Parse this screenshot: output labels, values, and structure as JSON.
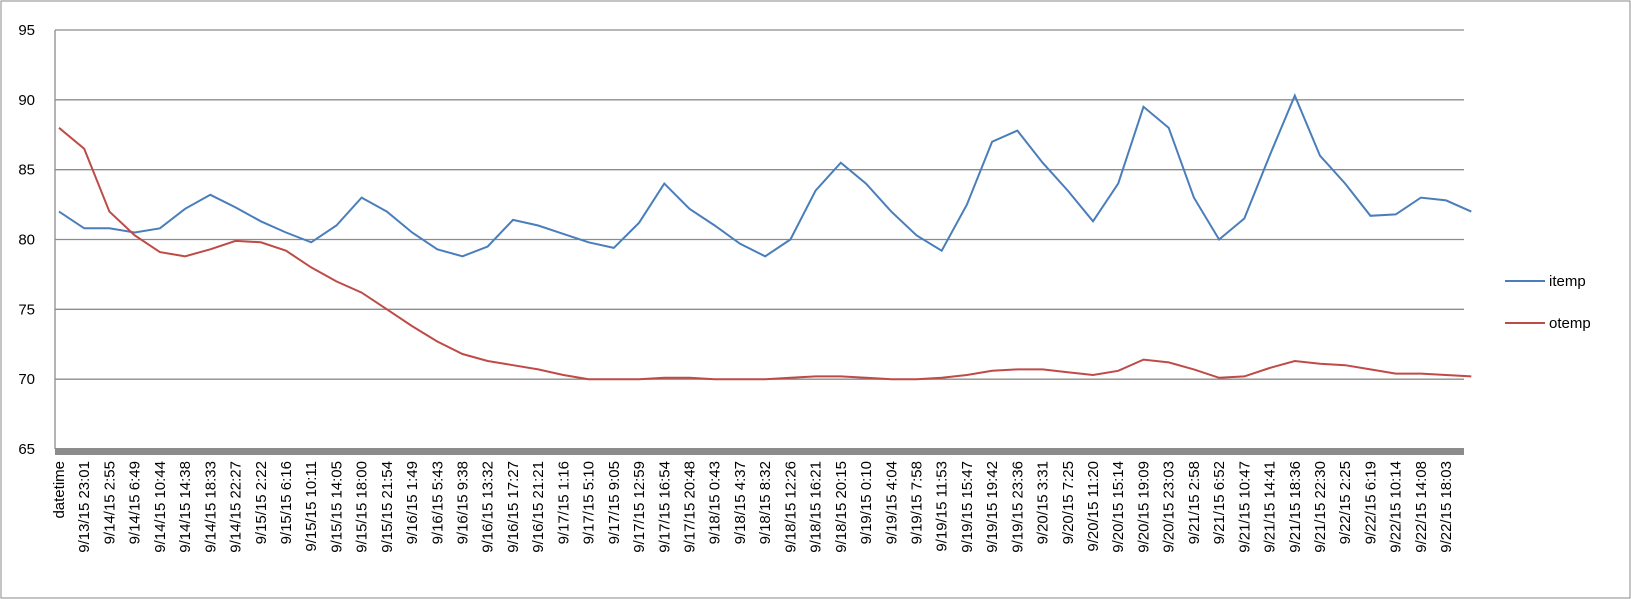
{
  "chart_data": {
    "type": "line",
    "categories": [
      "datetime",
      "9/13/15 23:01",
      "9/14/15 2:55",
      "9/14/15 6:49",
      "9/14/15 10:44",
      "9/14/15 14:38",
      "9/14/15 18:33",
      "9/14/15 22:27",
      "9/15/15 2:22",
      "9/15/15 6:16",
      "9/15/15 10:11",
      "9/15/15 14:05",
      "9/15/15 18:00",
      "9/15/15 21:54",
      "9/16/15 1:49",
      "9/16/15 5:43",
      "9/16/15 9:38",
      "9/16/15 13:32",
      "9/16/15 17:27",
      "9/16/15 21:21",
      "9/17/15 1:16",
      "9/17/15 5:10",
      "9/17/15 9:05",
      "9/17/15 12:59",
      "9/17/15 16:54",
      "9/17/15 20:48",
      "9/18/15 0:43",
      "9/18/15 4:37",
      "9/18/15 8:32",
      "9/18/15 12:26",
      "9/18/15 16:21",
      "9/18/15 20:15",
      "9/19/15 0:10",
      "9/19/15 4:04",
      "9/19/15 7:58",
      "9/19/15 11:53",
      "9/19/15 15:47",
      "9/19/15 19:42",
      "9/19/15 23:36",
      "9/20/15 3:31",
      "9/20/15 7:25",
      "9/20/15 11:20",
      "9/20/15 15:14",
      "9/20/15 19:09",
      "9/20/15 23:03",
      "9/21/15 2:58",
      "9/21/15 6:52",
      "9/21/15 10:47",
      "9/21/15 14:41",
      "9/21/15 18:36",
      "9/21/15 22:30",
      "9/22/15 2:25",
      "9/22/15 6:19",
      "9/22/15 10:14",
      "9/22/15 14:08",
      "9/22/15 18:03",
      null
    ],
    "series": [
      {
        "name": "itemp",
        "color": "#4a7ebb",
        "values": [
          82,
          80.8,
          80.8,
          80.5,
          80.8,
          82.2,
          83.2,
          82.3,
          81.3,
          80.5,
          79.8,
          81,
          83,
          82,
          80.5,
          79.3,
          78.8,
          79.5,
          81.4,
          81,
          80.4,
          79.8,
          79.4,
          81.2,
          84,
          82.2,
          81,
          79.7,
          78.8,
          80,
          83.5,
          85.5,
          84,
          82,
          80.3,
          79.2,
          82.5,
          87,
          87.8,
          85.5,
          83.5,
          81.3,
          84,
          89.5,
          88,
          83,
          80,
          81.5,
          86,
          90.3,
          86,
          84,
          81.7,
          81.8,
          83,
          82.8,
          82
        ]
      },
      {
        "name": "otemp",
        "color": "#be4b48",
        "values": [
          88,
          86.5,
          82,
          80.3,
          79.1,
          78.8,
          79.3,
          79.9,
          79.8,
          79.2,
          78,
          77,
          76.2,
          75,
          73.8,
          72.7,
          71.8,
          71.3,
          71,
          70.7,
          70.3,
          70,
          70,
          70,
          70.1,
          70.1,
          70,
          70,
          70,
          70.1,
          70.2,
          70.2,
          70.1,
          70,
          70,
          70.1,
          70.3,
          70.6,
          70.7,
          70.7,
          70.5,
          70.3,
          70.6,
          71.4,
          71.2,
          70.7,
          70.1,
          70.2,
          70.8,
          71.3,
          71.1,
          71,
          70.7,
          70.4,
          70.4,
          70.3,
          70.2
        ]
      }
    ],
    "ylim": [
      65,
      95
    ],
    "yticks": [
      65,
      70,
      75,
      80,
      85,
      90,
      95
    ],
    "grid": true,
    "legend": "right"
  }
}
